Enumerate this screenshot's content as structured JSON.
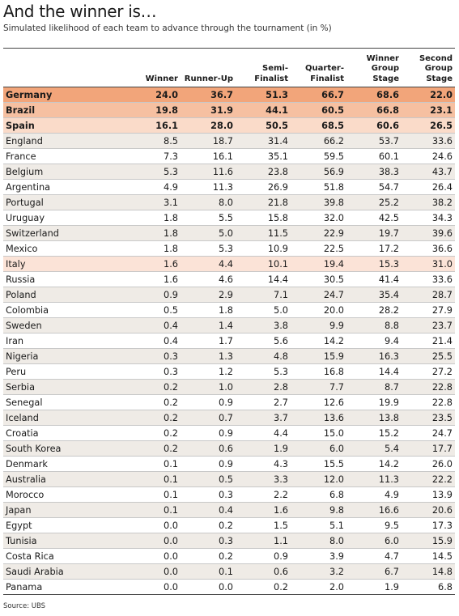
{
  "title": "And the winner is…",
  "subtitle": "Simulated likelihood of each team to advance through the tournament (in %)",
  "source": "Source: UBS",
  "chart_data": {
    "type": "table",
    "columns": [
      [
        "Winner"
      ],
      [
        "Runner-Up"
      ],
      [
        "Semi-",
        "Finalist"
      ],
      [
        "Quarter-",
        "Finalist"
      ],
      [
        "Winner",
        "Group",
        "Stage"
      ],
      [
        "Second",
        "Group",
        "Stage"
      ]
    ],
    "rows": [
      {
        "team": "Germany",
        "values": [
          "24.0",
          "36.7",
          "51.3",
          "66.7",
          "68.6",
          "22.0"
        ]
      },
      {
        "team": "Brazil",
        "values": [
          "19.8",
          "31.9",
          "44.1",
          "60.5",
          "66.8",
          "23.1"
        ]
      },
      {
        "team": "Spain",
        "values": [
          "16.1",
          "28.0",
          "50.5",
          "68.5",
          "60.6",
          "26.5"
        ]
      },
      {
        "team": "England",
        "values": [
          "8.5",
          "18.7",
          "31.4",
          "66.2",
          "53.7",
          "33.6"
        ]
      },
      {
        "team": "France",
        "values": [
          "7.3",
          "16.1",
          "35.1",
          "59.5",
          "60.1",
          "24.6"
        ]
      },
      {
        "team": "Belgium",
        "values": [
          "5.3",
          "11.6",
          "23.8",
          "56.9",
          "38.3",
          "43.7"
        ]
      },
      {
        "team": "Argentina",
        "values": [
          "4.9",
          "11.3",
          "26.9",
          "51.8",
          "54.7",
          "26.4"
        ]
      },
      {
        "team": "Portugal",
        "values": [
          "3.1",
          "8.0",
          "21.8",
          "39.8",
          "25.2",
          "38.2"
        ]
      },
      {
        "team": "Uruguay",
        "values": [
          "1.8",
          "5.5",
          "15.8",
          "32.0",
          "42.5",
          "34.3"
        ]
      },
      {
        "team": "Switzerland",
        "values": [
          "1.8",
          "5.0",
          "11.5",
          "22.9",
          "19.7",
          "39.6"
        ]
      },
      {
        "team": "Mexico",
        "values": [
          "1.8",
          "5.3",
          "10.9",
          "22.5",
          "17.2",
          "36.6"
        ]
      },
      {
        "team": "Italy",
        "values": [
          "1.6",
          "4.4",
          "10.1",
          "19.4",
          "15.3",
          "31.0"
        ]
      },
      {
        "team": "Russia",
        "values": [
          "1.6",
          "4.6",
          "14.4",
          "30.5",
          "41.4",
          "33.6"
        ]
      },
      {
        "team": "Poland",
        "values": [
          "0.9",
          "2.9",
          "7.1",
          "24.7",
          "35.4",
          "28.7"
        ]
      },
      {
        "team": "Colombia",
        "values": [
          "0.5",
          "1.8",
          "5.0",
          "20.0",
          "28.2",
          "27.9"
        ]
      },
      {
        "team": "Sweden",
        "values": [
          "0.4",
          "1.4",
          "3.8",
          "9.9",
          "8.8",
          "23.7"
        ]
      },
      {
        "team": "Iran",
        "values": [
          "0.4",
          "1.7",
          "5.6",
          "14.2",
          "9.4",
          "21.4"
        ]
      },
      {
        "team": "Nigeria",
        "values": [
          "0.3",
          "1.3",
          "4.8",
          "15.9",
          "16.3",
          "25.5"
        ]
      },
      {
        "team": "Peru",
        "values": [
          "0.3",
          "1.2",
          "5.3",
          "16.8",
          "14.4",
          "27.2"
        ]
      },
      {
        "team": "Serbia",
        "values": [
          "0.2",
          "1.0",
          "2.8",
          "7.7",
          "8.7",
          "22.8"
        ]
      },
      {
        "team": "Senegal",
        "values": [
          "0.2",
          "0.9",
          "2.7",
          "12.6",
          "19.9",
          "22.8"
        ]
      },
      {
        "team": "Iceland",
        "values": [
          "0.2",
          "0.7",
          "3.7",
          "13.6",
          "13.8",
          "23.5"
        ]
      },
      {
        "team": "Croatia",
        "values": [
          "0.2",
          "0.9",
          "4.4",
          "15.0",
          "15.2",
          "24.7"
        ]
      },
      {
        "team": "South Korea",
        "values": [
          "0.2",
          "0.6",
          "1.9",
          "6.0",
          "5.4",
          "17.7"
        ]
      },
      {
        "team": "Denmark",
        "values": [
          "0.1",
          "0.9",
          "4.3",
          "15.5",
          "14.2",
          "26.0"
        ]
      },
      {
        "team": "Australia",
        "values": [
          "0.1",
          "0.5",
          "3.3",
          "12.0",
          "11.3",
          "22.2"
        ]
      },
      {
        "team": "Morocco",
        "values": [
          "0.1",
          "0.3",
          "2.2",
          "6.8",
          "4.9",
          "13.9"
        ]
      },
      {
        "team": "Japan",
        "values": [
          "0.1",
          "0.4",
          "1.6",
          "9.8",
          "16.6",
          "20.6"
        ]
      },
      {
        "team": "Egypt",
        "values": [
          "0.0",
          "0.2",
          "1.5",
          "5.1",
          "9.5",
          "17.3"
        ]
      },
      {
        "team": "Tunisia",
        "values": [
          "0.0",
          "0.3",
          "1.1",
          "8.0",
          "6.0",
          "15.9"
        ]
      },
      {
        "team": "Costa Rica",
        "values": [
          "0.0",
          "0.2",
          "0.9",
          "3.9",
          "4.7",
          "14.5"
        ]
      },
      {
        "team": "Saudi Arabia",
        "values": [
          "0.0",
          "0.1",
          "0.6",
          "3.2",
          "6.7",
          "14.8"
        ]
      },
      {
        "team": "Panama",
        "values": [
          "0.0",
          "0.0",
          "0.2",
          "2.0",
          "1.9",
          "6.8"
        ]
      }
    ],
    "highlight_colors": {
      "Germany": "#f2a57a",
      "Brazil": "#f6c0a1",
      "Spain": "#fadbc9",
      "Italy": "#fbe3d7"
    }
  }
}
